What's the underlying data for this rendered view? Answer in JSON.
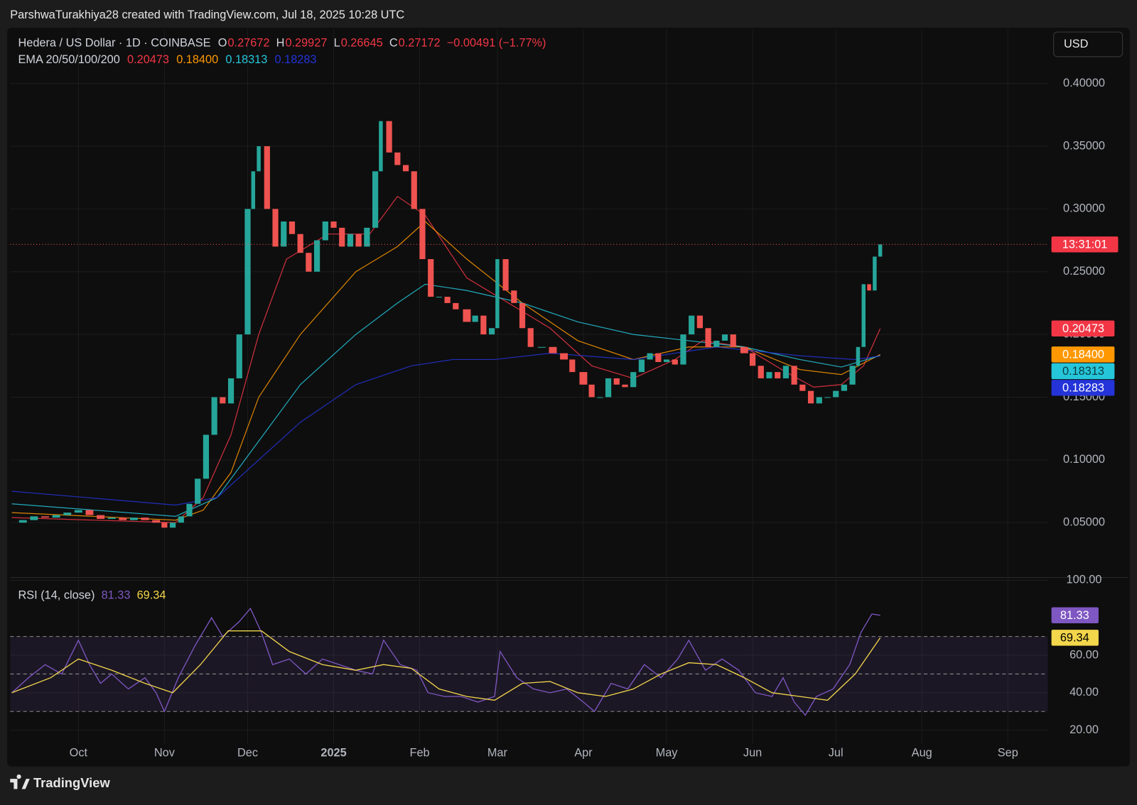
{
  "header": {
    "attribution": "ParshwaTurakhiya28 created with TradingView.com, Jul 18, 2025 10:28 UTC",
    "currency_button": "USD",
    "brand": "TradingView"
  },
  "chart_data": [
    {
      "type": "candlestick",
      "symbol": "Hedera / US Dollar · 1D · COINBASE",
      "ohlc": [
        {
          "label": "O",
          "value": "0.27672"
        },
        {
          "label": "H",
          "value": "0.29927"
        },
        {
          "label": "L",
          "value": "0.26645"
        },
        {
          "label": "C",
          "value": "0.27172"
        }
      ],
      "change": "−0.00491 (−1.77%)",
      "countdown": "13:31:01",
      "ema_title": "EMA 20/50/100/200",
      "up_color": "#26a69a",
      "down_color": "#ef5350",
      "xlim": [
        -24.6,
        349.4
      ],
      "ylim": [
        0.0063,
        0.4433
      ],
      "yticks": [
        {
          "value": 0.05,
          "label": "0.05000"
        },
        {
          "value": 0.1,
          "label": "0.10000"
        },
        {
          "value": 0.15,
          "label": "0.15000"
        },
        {
          "value": 0.2,
          "label": "0.20000"
        },
        {
          "value": 0.25,
          "label": "0.25000"
        },
        {
          "value": 0.3,
          "label": "0.30000"
        },
        {
          "value": 0.35,
          "label": "0.35000"
        },
        {
          "value": 0.4,
          "label": "0.40000"
        }
      ],
      "x": [
        -24,
        -20,
        -16,
        -12,
        -8,
        -4,
        0,
        4,
        8,
        12,
        16,
        20,
        24,
        28,
        31,
        34,
        37,
        40,
        43,
        46,
        49,
        52,
        55,
        58,
        61,
        63,
        65,
        68,
        71,
        74,
        77,
        80,
        83,
        86,
        89,
        92,
        95,
        98,
        101,
        104,
        107,
        109,
        112,
        115,
        118,
        121,
        124,
        127,
        130,
        133,
        136,
        140,
        143,
        146,
        149,
        151,
        154,
        157,
        160,
        163,
        167,
        171,
        175,
        178,
        182,
        185,
        188,
        191,
        194,
        197,
        200,
        203,
        206,
        209,
        212,
        215,
        218,
        221,
        224,
        227,
        230,
        233,
        236,
        240,
        243,
        246,
        249,
        252,
        255,
        258,
        261,
        264,
        267,
        270,
        273,
        276,
        279,
        281,
        283,
        285,
        287,
        289
      ],
      "close": [
        0.05,
        0.052,
        0.055,
        0.054,
        0.056,
        0.058,
        0.06,
        0.056,
        0.053,
        0.054,
        0.052,
        0.054,
        0.052,
        0.05,
        0.046,
        0.05,
        0.055,
        0.065,
        0.085,
        0.12,
        0.15,
        0.145,
        0.165,
        0.2,
        0.3,
        0.33,
        0.35,
        0.3,
        0.27,
        0.29,
        0.28,
        0.265,
        0.25,
        0.275,
        0.29,
        0.285,
        0.27,
        0.28,
        0.27,
        0.285,
        0.33,
        0.37,
        0.345,
        0.335,
        0.33,
        0.3,
        0.26,
        0.23,
        0.23,
        0.225,
        0.22,
        0.21,
        0.215,
        0.2,
        0.205,
        0.26,
        0.235,
        0.225,
        0.205,
        0.19,
        0.19,
        0.185,
        0.18,
        0.17,
        0.16,
        0.15,
        0.15,
        0.165,
        0.16,
        0.158,
        0.17,
        0.18,
        0.185,
        0.178,
        0.18,
        0.176,
        0.2,
        0.215,
        0.205,
        0.19,
        0.195,
        0.2,
        0.19,
        0.185,
        0.175,
        0.165,
        0.17,
        0.165,
        0.175,
        0.16,
        0.155,
        0.145,
        0.15,
        0.15,
        0.155,
        0.16,
        0.175,
        0.19,
        0.24,
        0.235,
        0.262,
        0.27172
      ],
      "series": [
        {
          "label": "0.20473",
          "color": "#f23645",
          "tag_text_color": "#ffffff",
          "x": [
            -24,
            35,
            45,
            55,
            65,
            75,
            90,
            105,
            115,
            125,
            140,
            155,
            170,
            185,
            200,
            215,
            225,
            240,
            255,
            265,
            275,
            283,
            289
          ],
          "values": [
            0.054,
            0.05,
            0.07,
            0.12,
            0.2,
            0.26,
            0.28,
            0.28,
            0.31,
            0.295,
            0.245,
            0.225,
            0.205,
            0.175,
            0.165,
            0.18,
            0.195,
            0.19,
            0.17,
            0.158,
            0.16,
            0.175,
            0.20473
          ]
        },
        {
          "label": "0.18400",
          "color": "#ff9800",
          "tag_text_color": "#ffffff",
          "x": [
            -24,
            35,
            45,
            55,
            65,
            80,
            100,
            115,
            125,
            140,
            160,
            180,
            200,
            220,
            240,
            260,
            275,
            289
          ],
          "values": [
            0.058,
            0.052,
            0.06,
            0.09,
            0.15,
            0.2,
            0.25,
            0.27,
            0.29,
            0.26,
            0.225,
            0.195,
            0.18,
            0.19,
            0.19,
            0.172,
            0.168,
            0.184
          ]
        },
        {
          "label": "0.18313",
          "color": "#26c6da",
          "tag_text_color": "#0b3b40",
          "x": [
            -24,
            35,
            50,
            60,
            80,
            100,
            115,
            125,
            140,
            160,
            180,
            200,
            220,
            240,
            260,
            275,
            289
          ],
          "values": [
            0.065,
            0.055,
            0.07,
            0.1,
            0.16,
            0.2,
            0.225,
            0.24,
            0.235,
            0.225,
            0.21,
            0.2,
            0.195,
            0.19,
            0.18,
            0.174,
            0.18313
          ]
        },
        {
          "label": "0.18283",
          "color": "#2434d8",
          "tag_text_color": "#ffffff",
          "x": [
            -24,
            35,
            50,
            60,
            80,
            100,
            120,
            135,
            150,
            170,
            200,
            230,
            260,
            280,
            289
          ],
          "values": [
            0.075,
            0.064,
            0.07,
            0.09,
            0.13,
            0.16,
            0.175,
            0.18,
            0.18,
            0.185,
            0.18,
            0.19,
            0.183,
            0.18,
            0.18283
          ]
        }
      ]
    },
    {
      "type": "line",
      "title": "RSI (14, close)",
      "xlim": [
        -24.6,
        349.4
      ],
      "ylim": [
        12.6,
        101.5
      ],
      "yticks": [
        {
          "value": 20,
          "label": "20.00"
        },
        {
          "value": 40,
          "label": "40.00"
        },
        {
          "value": 60,
          "label": "60.00"
        },
        {
          "value": 100,
          "label": "100.00"
        }
      ],
      "levels": [
        30,
        50,
        70
      ],
      "band_color": "rgba(126,87,194,0.13)",
      "xticks": [
        {
          "value": 0,
          "label": "Oct"
        },
        {
          "value": 31,
          "label": "Nov"
        },
        {
          "value": 61,
          "label": "Dec"
        },
        {
          "value": 92,
          "label": "2025"
        },
        {
          "value": 123,
          "label": "Feb"
        },
        {
          "value": 151,
          "label": "Mar"
        },
        {
          "value": 182,
          "label": "Apr"
        },
        {
          "value": 212,
          "label": "May"
        },
        {
          "value": 243,
          "label": "Jun"
        },
        {
          "value": 273,
          "label": "Jul"
        },
        {
          "value": 304,
          "label": "Aug"
        },
        {
          "value": 335,
          "label": "Sep"
        }
      ],
      "series": [
        {
          "color": "#7e57c2",
          "tag_text_color": "#ffffff",
          "x": [
            -24,
            -18,
            -12,
            -6,
            0,
            4,
            8,
            12,
            18,
            24,
            28,
            31,
            36,
            42,
            48,
            52,
            58,
            62,
            66,
            70,
            76,
            82,
            88,
            94,
            100,
            106,
            110,
            116,
            122,
            126,
            132,
            138,
            144,
            150,
            152,
            158,
            164,
            170,
            176,
            182,
            186,
            192,
            198,
            204,
            210,
            216,
            220,
            226,
            232,
            238,
            244,
            250,
            254,
            258,
            262,
            266,
            272,
            278,
            282,
            286,
            289
          ],
          "values": [
            40,
            48,
            55,
            50,
            68,
            55,
            45,
            50,
            42,
            48,
            40,
            30,
            48,
            65,
            80,
            70,
            78,
            85,
            72,
            55,
            58,
            50,
            58,
            55,
            52,
            50,
            68,
            55,
            52,
            40,
            38,
            38,
            35,
            38,
            62,
            48,
            42,
            40,
            42,
            35,
            30,
            45,
            42,
            55,
            48,
            58,
            68,
            52,
            58,
            52,
            40,
            38,
            48,
            35,
            28,
            38,
            42,
            55,
            72,
            82,
            81.33
          ]
        },
        {
          "color": "#f2d64b",
          "tag_text_color": "#000000",
          "x": [
            -24,
            -10,
            0,
            12,
            24,
            34,
            44,
            54,
            66,
            76,
            88,
            100,
            110,
            120,
            130,
            140,
            150,
            160,
            170,
            180,
            190,
            200,
            210,
            220,
            230,
            240,
            250,
            260,
            270,
            280,
            289
          ],
          "values": [
            40,
            48,
            58,
            52,
            45,
            40,
            55,
            73,
            73,
            62,
            55,
            52,
            55,
            53,
            42,
            38,
            36,
            45,
            46,
            40,
            38,
            42,
            50,
            56,
            55,
            48,
            40,
            38,
            36,
            50,
            69.34
          ]
        }
      ]
    }
  ]
}
